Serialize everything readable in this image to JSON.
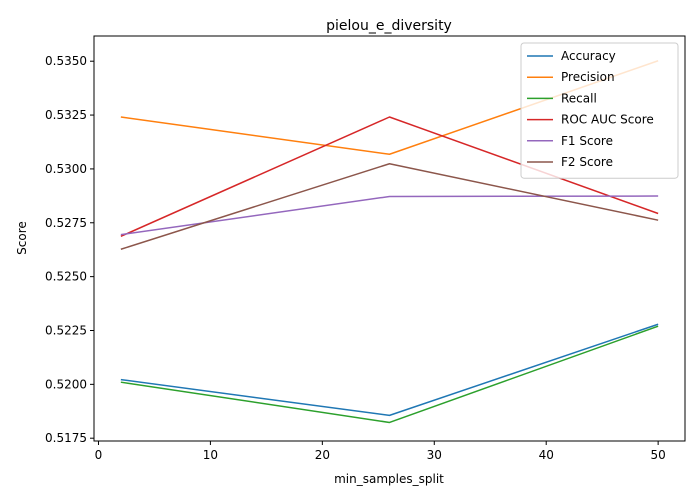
{
  "chart_data": {
    "type": "line",
    "title": "pielou_e_diversity",
    "xlabel": "min_samples_split",
    "ylabel": "Score",
    "x": [
      2,
      26,
      50
    ],
    "xlim": [
      -0.4,
      52.4
    ],
    "ylim": [
      0.51737,
      0.53617
    ],
    "xticks": [
      0,
      10,
      20,
      30,
      40,
      50
    ],
    "yticks": [
      "0.5175",
      "0.5200",
      "0.5225",
      "0.5250",
      "0.5275",
      "0.5300",
      "0.5325",
      "0.5350"
    ],
    "grid": false,
    "legend_position": "top-right",
    "series": [
      {
        "name": "Accuracy",
        "color": "#1f77b4",
        "values": [
          0.52022,
          0.51856,
          0.52279
        ]
      },
      {
        "name": "Precision",
        "color": "#ff7f0e",
        "values": [
          0.53241,
          0.53068,
          0.53502
        ]
      },
      {
        "name": "Recall",
        "color": "#2ca02c",
        "values": [
          0.5201,
          0.51823,
          0.5227
        ]
      },
      {
        "name": "ROC AUC Score",
        "color": "#d62728",
        "values": [
          0.52687,
          0.53241,
          0.52793
        ]
      },
      {
        "name": "F1 Score",
        "color": "#9467bd",
        "values": [
          0.52695,
          0.52872,
          0.52874
        ]
      },
      {
        "name": "F2 Score",
        "color": "#8c564b",
        "values": [
          0.52627,
          0.53024,
          0.52762
        ]
      }
    ]
  }
}
